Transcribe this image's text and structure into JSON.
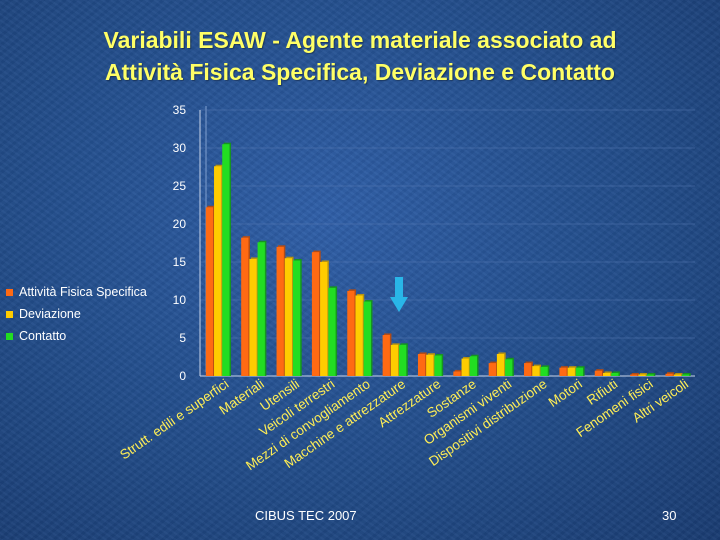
{
  "slide": {
    "title_line1": "Variabili ESAW - Agente materiale associato ad",
    "title_line2": "Attività Fisica Specifica, Deviazione e Contatto",
    "footer": "CIBUS TEC 2007",
    "page_number": "30",
    "arrow_icon": "down-arrow-icon",
    "arrow_color": "#29b6e8",
    "title_color": "#ffff66"
  },
  "chart_data": {
    "type": "bar",
    "title": "",
    "xlabel": "",
    "ylabel": "",
    "ylim": [
      0,
      35
    ],
    "yticks": [
      "0",
      "5",
      "10",
      "15",
      "20",
      "25",
      "30",
      "35"
    ],
    "grid": true,
    "legend_position": "left",
    "categories": [
      "Strutt. edili e superfici",
      "Materiali",
      "Utensili",
      "Veicoli terrestri",
      "Mezzi di convogliamento",
      "Macchine e attrezzature",
      "Attrezzature",
      "Sostanze",
      "Organismi viventi",
      "Dispositivi distribuzione",
      "Motori",
      "Rifiuti",
      "Fenomeni fisici",
      "Altri veicoli"
    ],
    "series": [
      {
        "name": "Attività Fisica Specifica",
        "color": "#ff6a13",
        "values": [
          22.2,
          18.2,
          17.0,
          16.3,
          11.2,
          5.4,
          2.9,
          0.6,
          1.7,
          1.7,
          1.1,
          0.7,
          0.2,
          0.3
        ]
      },
      {
        "name": "Deviazione",
        "color": "#ffcc00",
        "values": [
          27.6,
          15.4,
          15.5,
          15.0,
          10.6,
          4.1,
          2.8,
          2.3,
          2.9,
          1.3,
          1.1,
          0.4,
          0.2,
          0.2
        ]
      },
      {
        "name": "Contatto",
        "color": "#22dd22",
        "values": [
          30.5,
          17.6,
          15.2,
          11.6,
          9.8,
          4.1,
          2.7,
          2.6,
          2.2,
          1.2,
          1.1,
          0.4,
          0.2,
          0.2
        ]
      }
    ]
  }
}
